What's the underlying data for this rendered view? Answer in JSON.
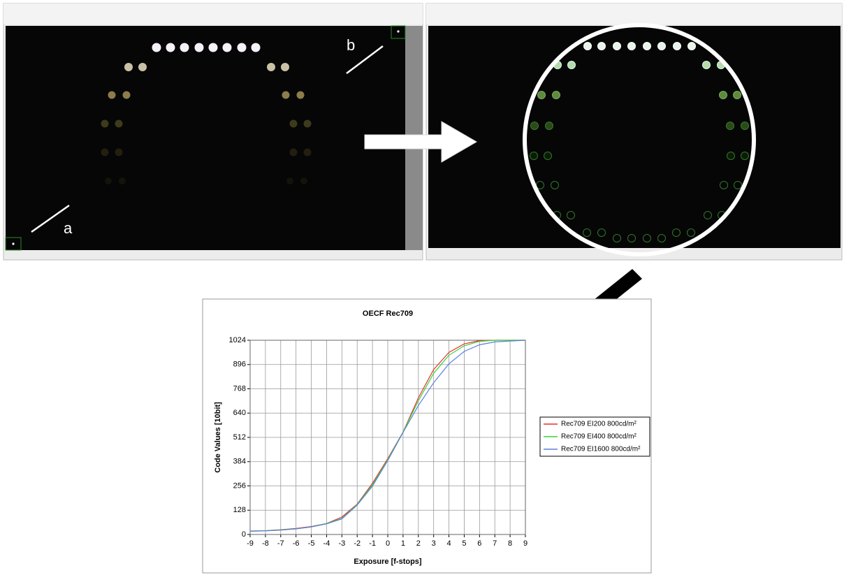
{
  "panel_labels": [
    "a",
    "b"
  ],
  "chart_data": {
    "type": "line",
    "title": "OECF Rec709",
    "x_label": "Exposure [f-stops]",
    "y_label": "Code Values [10bit]",
    "x": [
      -9,
      -8,
      -7,
      -6,
      -5,
      -4,
      -3,
      -2,
      -1,
      0,
      1,
      2,
      3,
      4,
      5,
      6,
      7,
      8,
      9
    ],
    "series": [
      {
        "name": "Rec709 EI200 800cd/m²",
        "color": "#e8302e",
        "values": [
          18,
          20,
          25,
          32,
          42,
          58,
          92,
          160,
          270,
          400,
          540,
          720,
          870,
          960,
          1005,
          1022,
          1024,
          1024,
          1024
        ]
      },
      {
        "name": "Rec709 EI400 800cd/m²",
        "color": "#33d533",
        "values": [
          18,
          20,
          24,
          30,
          40,
          58,
          85,
          158,
          262,
          395,
          540,
          705,
          850,
          945,
          995,
          1018,
          1024,
          1024,
          1024
        ]
      },
      {
        "name": "Rec709 EI1600 800cd/m²",
        "color": "#5b7ee0",
        "values": [
          17,
          19,
          23,
          30,
          40,
          56,
          82,
          155,
          255,
          390,
          538,
          680,
          800,
          900,
          965,
          1000,
          1015,
          1020,
          1024
        ]
      }
    ],
    "xlim": [
      -9,
      9
    ],
    "ylim": [
      0,
      1024
    ],
    "xticks": [
      -9,
      -8,
      -7,
      -6,
      -5,
      -4,
      -3,
      -2,
      -1,
      0,
      1,
      2,
      3,
      4,
      5,
      6,
      7,
      8,
      9
    ],
    "yticks": [
      0,
      128,
      256,
      384,
      512,
      640,
      768,
      896,
      1024
    ],
    "grid": true,
    "legend": "right"
  }
}
